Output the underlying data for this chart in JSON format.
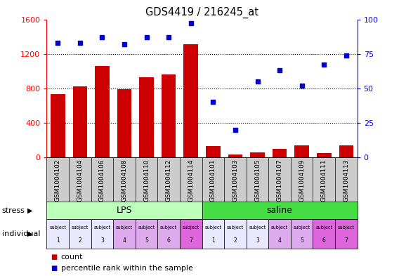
{
  "title": "GDS4419 / 216245_at",
  "samples": [
    "GSM1004102",
    "GSM1004104",
    "GSM1004106",
    "GSM1004108",
    "GSM1004110",
    "GSM1004112",
    "GSM1004114",
    "GSM1004101",
    "GSM1004103",
    "GSM1004105",
    "GSM1004107",
    "GSM1004109",
    "GSM1004111",
    "GSM1004113"
  ],
  "bar_values": [
    730,
    820,
    1060,
    790,
    930,
    960,
    1310,
    130,
    30,
    60,
    100,
    140,
    50,
    140
  ],
  "dot_values": [
    83,
    83,
    87,
    82,
    87,
    87,
    97,
    40,
    20,
    55,
    63,
    52,
    67,
    74
  ],
  "bar_color": "#cc0000",
  "dot_color": "#0000cc",
  "ylim_left": [
    0,
    1600
  ],
  "ylim_right": [
    0,
    100
  ],
  "yticks_left": [
    0,
    400,
    800,
    1200,
    1600
  ],
  "yticks_right": [
    0,
    25,
    50,
    75,
    100
  ],
  "lps_color_light": "#bbffbb",
  "lps_color": "#88ee88",
  "saline_color": "#44dd44",
  "indiv_colors": [
    "#e8e8ff",
    "#e8e8ff",
    "#e8e8ff",
    "#ddaaee",
    "#ddaaee",
    "#ddaaee",
    "#dd66dd",
    "#e8e8ff",
    "#e8e8ff",
    "#e8e8ff",
    "#ddaaee",
    "#ddaaee",
    "#dd66dd",
    "#dd66dd"
  ],
  "subj_numbers": [
    "1",
    "2",
    "3",
    "4",
    "5",
    "6",
    "7",
    "1",
    "2",
    "3",
    "4",
    "5",
    "6",
    "7"
  ],
  "stress_label": "stress",
  "individual_label": "individual",
  "legend_bar": "count",
  "legend_dot": "percentile rank within the sample",
  "xticklabel_bg": "#cccccc"
}
